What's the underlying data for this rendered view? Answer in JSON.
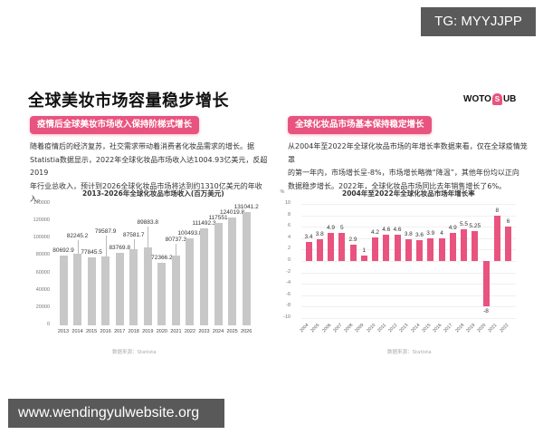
{
  "overlay": {
    "tg_badge": "TG: MYYJJPP",
    "url_badge": "www.wendingyulwebsite.org"
  },
  "header": {
    "title": "全球美妆市场容量稳步增长",
    "logo": {
      "left": "WOTO",
      "mark": "S",
      "right": "UB"
    }
  },
  "left_section": {
    "badge": "疫情后全球美妆市场收入保持阶梯式增长",
    "text_lines": [
      "随着疫情后的经济复苏，社交需求带动着消费者化妆品需求的增长。据",
      "Statistia数据显示，2022年全球化妆品市场收入达1004.93亿美元，反超2019",
      "年行业总收入，预计到2026全球化妆品市场将达到约1310亿美元的年收入。"
    ],
    "source": "数据来源：Statista"
  },
  "right_section": {
    "badge": "全球化妆品市场基本保持稳定增长",
    "text_lines": [
      "从2004年至2022年全球化妆品市场的年增长率数据来看，仅在全球疫情笼罩",
      "的第一年内，市场增长呈-8%，市场增长略微“降温”，其他年份均以正向",
      "数据稳步增长。2022年，全球化妆品市场同比去年销售增长了6%。"
    ],
    "source": "数据来源：Statista"
  },
  "chart_data": [
    {
      "type": "bar",
      "title": "2013-2026年全球化妆品市场收入(百万美元)",
      "xlabel": "",
      "ylabel": "",
      "categories": [
        "2013",
        "2014",
        "2015",
        "2016",
        "2017",
        "2018",
        "2019",
        "2020",
        "2021",
        "2022",
        "2023",
        "2024",
        "2025",
        "2026"
      ],
      "values": [
        80692.9,
        82245.2,
        77845.5,
        79587.9,
        83769.8,
        87581.7,
        89883.8,
        72366.2,
        80737.3,
        100493.8,
        111492.3,
        117551,
        124019.8,
        131041.2
      ],
      "labels": [
        "80692.9",
        "82245.2",
        "77845.5",
        "79587.9",
        "83769.8",
        "87581.7",
        "89883.8",
        "72366.2",
        "80737.3",
        "100493.8",
        "111492.3",
        "117551",
        "124019.8",
        "131041.2"
      ],
      "yticks": [
        "0",
        "20000",
        "40000",
        "60000",
        "80000",
        "100000",
        "120000",
        "140000"
      ],
      "ylim": [
        0,
        140000
      ],
      "grid": false,
      "color": "#c8c8c8"
    },
    {
      "type": "bar",
      "title": "2004年至2022年全球化妆品市场年增长率",
      "xlabel": "",
      "ylabel": "%",
      "categories": [
        "2004",
        "2005",
        "2006",
        "2007",
        "2008",
        "2009",
        "2010",
        "2011",
        "2012",
        "2013",
        "2014",
        "2015",
        "2016",
        "2017",
        "2018",
        "2019",
        "2020",
        "2021",
        "2022"
      ],
      "values": [
        3.4,
        3.8,
        4.9,
        5,
        2.9,
        1,
        4.2,
        4.6,
        4.6,
        3.8,
        3.6,
        3.9,
        4,
        4.9,
        5.5,
        5.25,
        -8,
        8,
        6
      ],
      "labels": [
        "3.4",
        "3.8",
        "4.9",
        "5",
        "2.9",
        "1",
        "4.2",
        "4.6",
        "4.6",
        "3.8",
        "3.6",
        "3.9",
        "4",
        "4.9",
        "5.5",
        "5.25",
        "-8",
        "8",
        "6"
      ],
      "yticks": [
        "-10",
        "-8",
        "-6",
        "-4",
        "-2",
        "0",
        "2",
        "4",
        "6",
        "8",
        "10"
      ],
      "ylim": [
        -10,
        10
      ],
      "grid": true,
      "color": "#e8547f"
    }
  ],
  "colors": {
    "accent": "#e8547f",
    "bar_gray": "#c8c8c8",
    "overlay_bg": "#5a5a5a"
  }
}
